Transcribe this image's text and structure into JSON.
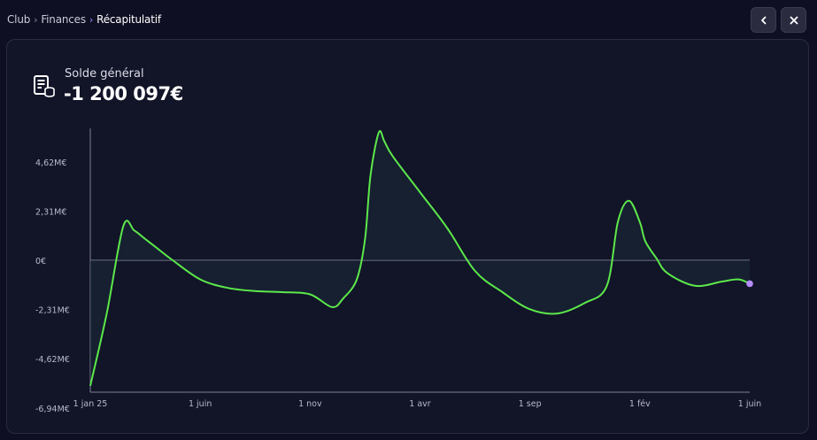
{
  "breadcrumb": {
    "items": [
      "Club",
      "Finances",
      "Récapitulatif"
    ]
  },
  "buttons": {
    "back_icon": "chevron-left-icon",
    "close_icon": "close-icon"
  },
  "summary": {
    "label": "Solde général",
    "value": "-1 200 097€",
    "icon": "ledger-coins-icon"
  },
  "colors": {
    "background": "#0e0f22",
    "panel": "#121428",
    "line": "#5ce84a",
    "last_point": "#b48cff",
    "accent": "#a98bff"
  },
  "chart_data": {
    "type": "line",
    "y_ticks": [
      "4,62M€",
      "2,31M€",
      "0€",
      "-2,31M€",
      "-4,62M€",
      "-6,94M€"
    ],
    "y_tick_values": [
      4.62,
      2.31,
      0,
      -2.31,
      -4.62,
      -6.94
    ],
    "x_ticks": [
      "1 jan 25",
      "1 juin",
      "1 nov",
      "1 avr",
      "1 sep",
      "1 fév",
      "1 juin"
    ],
    "ylim": [
      -6.2,
      6.2
    ],
    "unit": "M€",
    "grid": false,
    "legend": "none",
    "series": [
      {
        "x": [
          0.0,
          0.3,
          0.6,
          0.8,
          1.0,
          1.2,
          1.5,
          2.0,
          2.5,
          3.0,
          3.5,
          4.0,
          4.4,
          4.6,
          4.85,
          5.0,
          5.1,
          5.25,
          5.35,
          5.5,
          6.0,
          6.5,
          7.0,
          7.5,
          8.0,
          8.5,
          9.0,
          9.4,
          9.6,
          9.8,
          10.0,
          10.1,
          10.3,
          10.5,
          11.0,
          11.5,
          11.8,
          12.0
        ],
        "y": [
          -5.9,
          -2.5,
          1.6,
          1.4,
          1.0,
          0.6,
          0.0,
          -0.9,
          -1.3,
          -1.45,
          -1.5,
          -1.6,
          -2.2,
          -1.8,
          -0.9,
          1.0,
          4.0,
          6.0,
          5.6,
          4.9,
          3.2,
          1.5,
          -0.5,
          -1.5,
          -2.3,
          -2.5,
          -2.0,
          -1.2,
          1.8,
          2.8,
          1.8,
          0.9,
          0.1,
          -0.6,
          -1.2,
          -1.0,
          -0.9,
          -1.1
        ]
      }
    ]
  }
}
